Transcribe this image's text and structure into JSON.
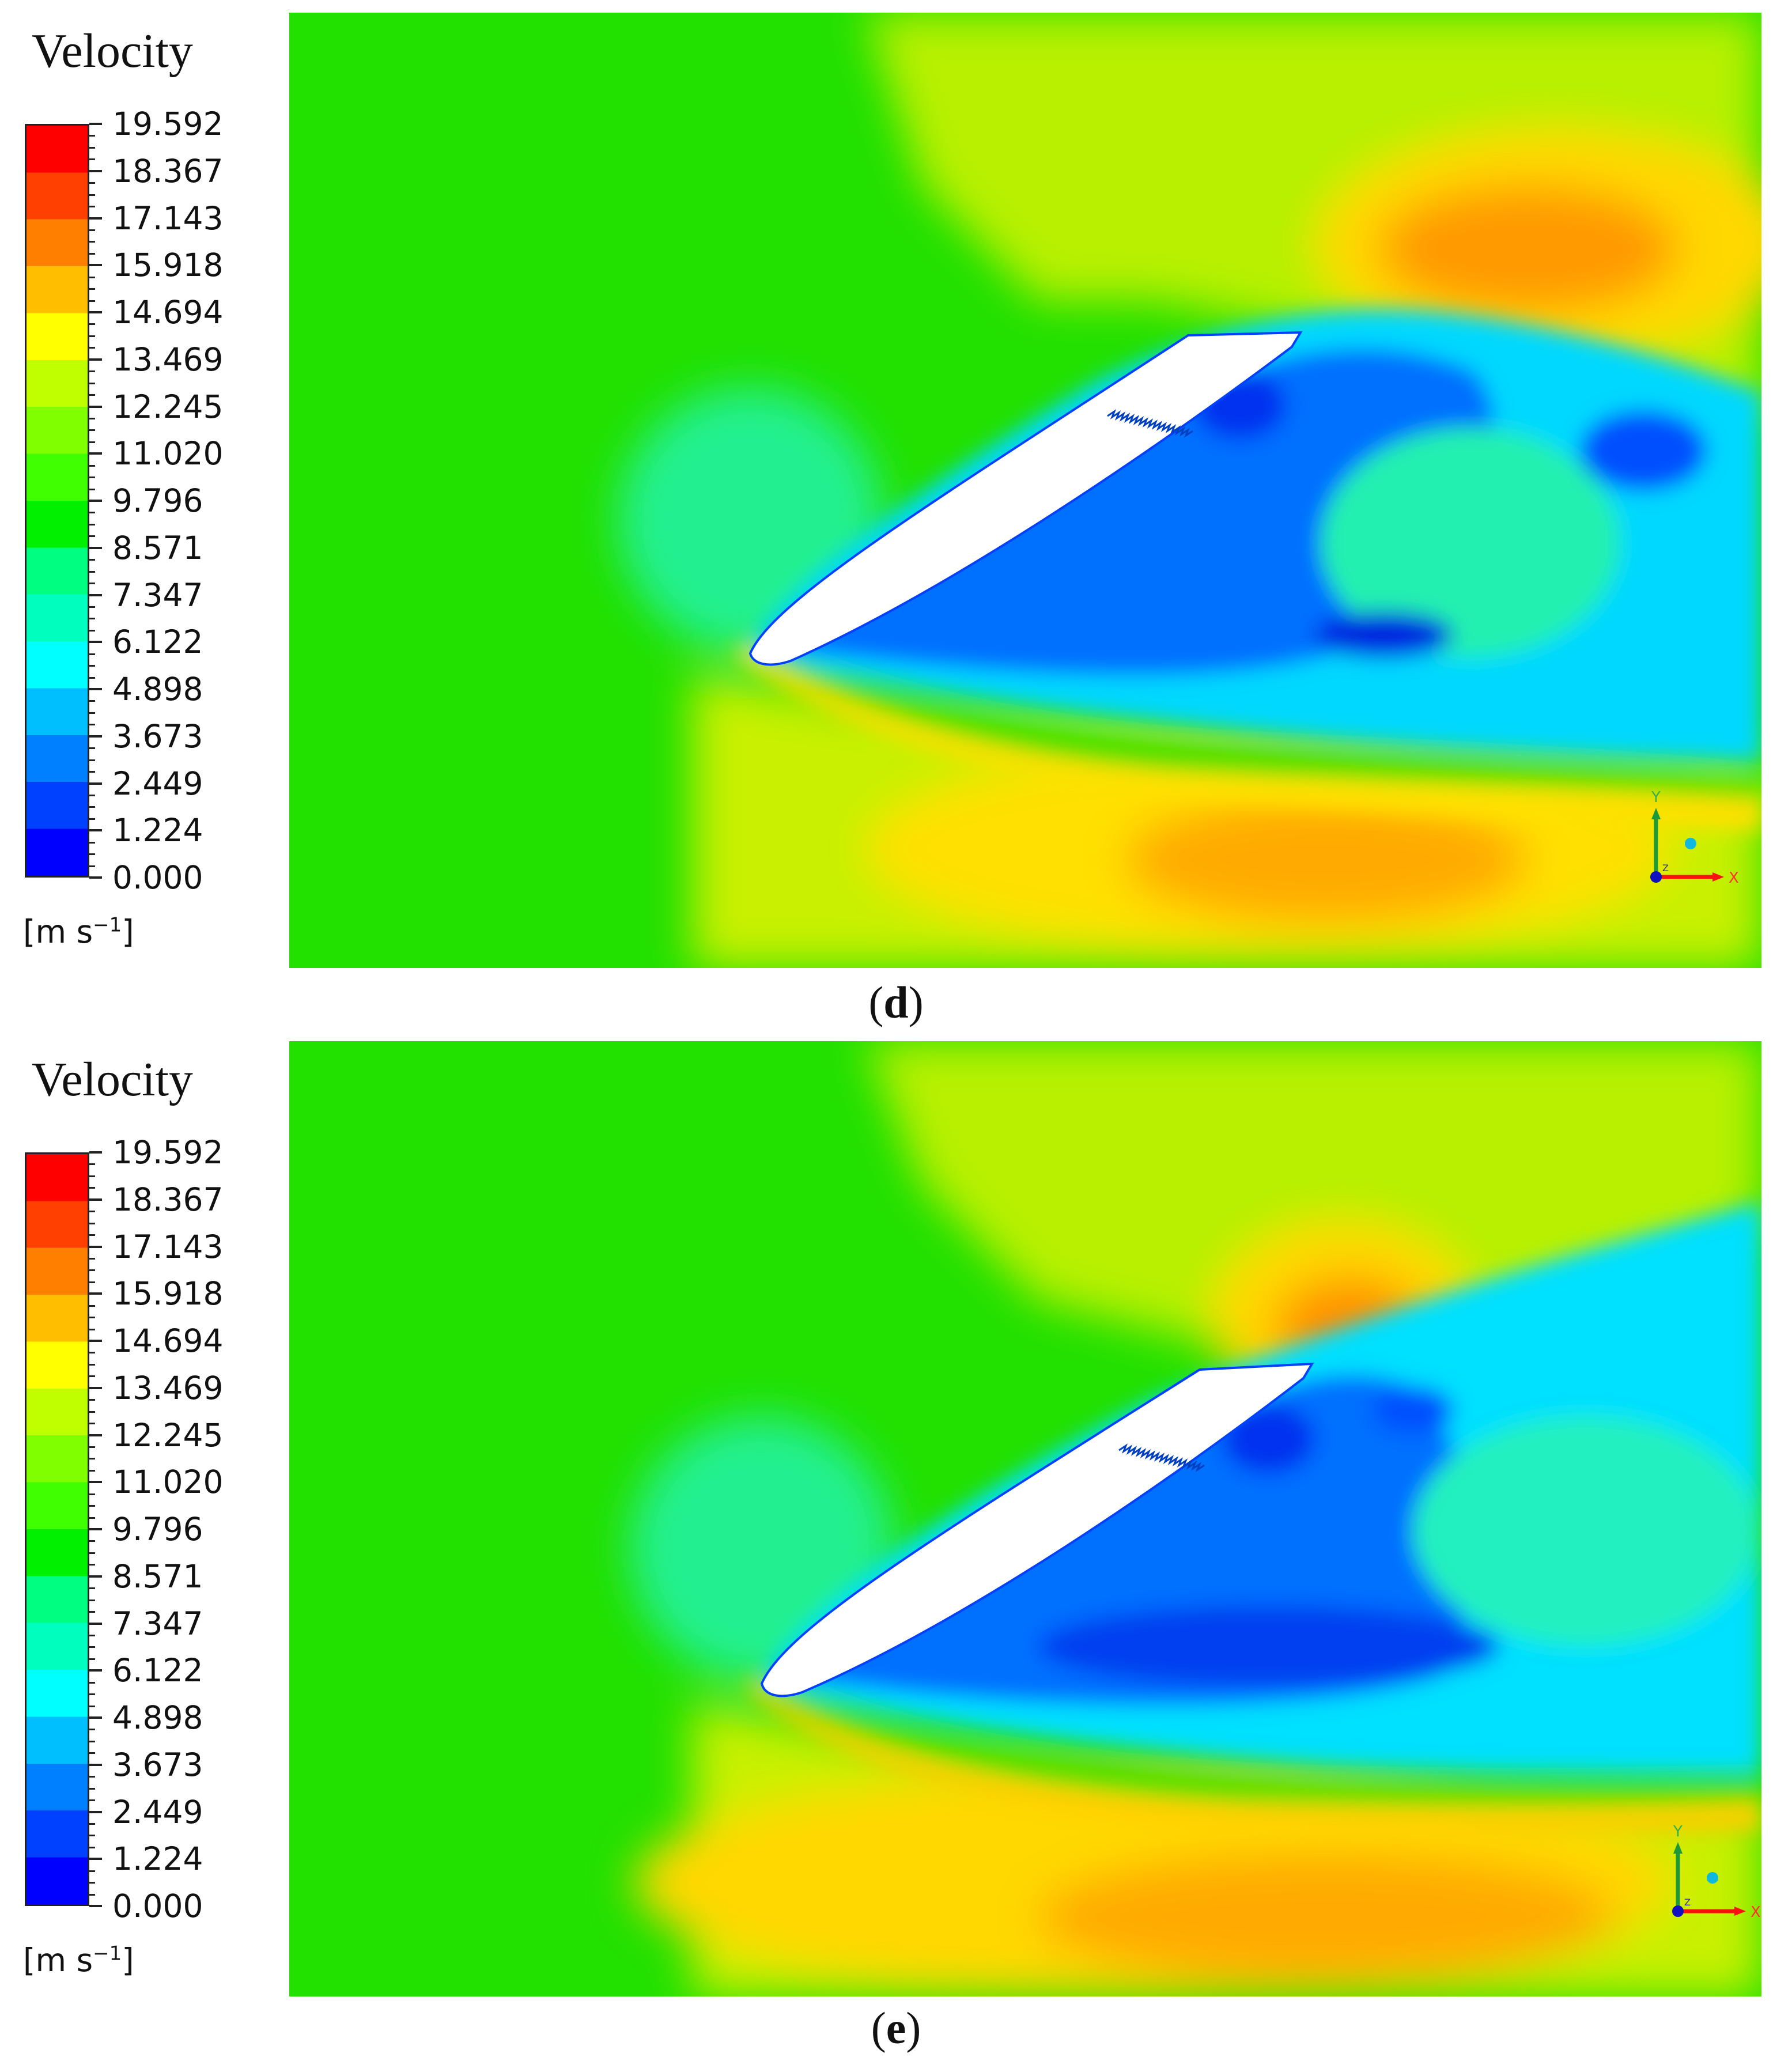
{
  "colormap": [
    "#0000ff",
    "#0040ff",
    "#0080ff",
    "#00bfff",
    "#00ffff",
    "#00ffbf",
    "#00ff80",
    "#00f000",
    "#40ff00",
    "#80ff00",
    "#bfff00",
    "#ffff00",
    "#ffbf00",
    "#ff8000",
    "#ff4000",
    "#ff0000"
  ],
  "legend": {
    "title": "Velocity",
    "units_prefix": "[m s",
    "units_exp": "−1",
    "units_suffix": "]",
    "ticks": [
      "19.592",
      "18.367",
      "17.143",
      "15.918",
      "14.694",
      "13.469",
      "12.245",
      "11.020",
      "9.796",
      "8.571",
      "7.347",
      "6.122",
      "4.898",
      "3.673",
      "2.449",
      "1.224",
      "0.000"
    ]
  },
  "axes_triad": {
    "x_label": "X",
    "y_label": "Y",
    "z_label": "Z"
  },
  "panels": [
    {
      "id": "d",
      "label": "d",
      "paren_open": "(",
      "paren_close": ")"
    },
    {
      "id": "e",
      "label": "e",
      "paren_open": "(",
      "paren_close": ")"
    }
  ]
}
